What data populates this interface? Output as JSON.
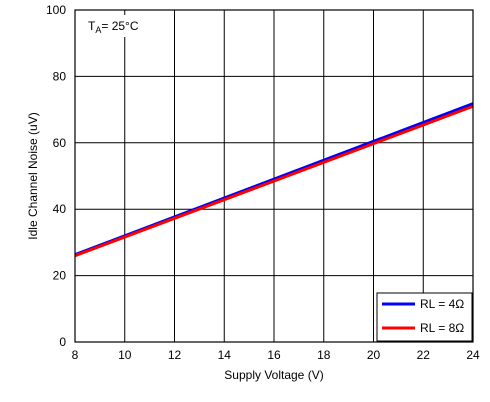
{
  "chart_data": {
    "type": "line",
    "title": "",
    "xlabel": "Supply Voltage (V)",
    "ylabel": "Idle Channel Noise (uV)",
    "xlim": [
      8,
      24
    ],
    "ylim": [
      0,
      100
    ],
    "x_ticks": [
      "8",
      "10",
      "12",
      "14",
      "16",
      "18",
      "20",
      "22",
      "24"
    ],
    "y_ticks": [
      "0",
      "20",
      "40",
      "60",
      "80",
      "100"
    ],
    "grid": true,
    "legend_position": "bottom-right",
    "annotation": {
      "main": "T",
      "subscript": "A",
      "rest": "= 25°C"
    },
    "series": [
      {
        "name": "RL = 4Ω",
        "color": "#0000ff",
        "x": [
          8,
          24
        ],
        "y": [
          26.3,
          71.8
        ]
      },
      {
        "name": "RL = 8Ω",
        "color": "#ff0000",
        "x": [
          8,
          24
        ],
        "y": [
          26.0,
          71.0
        ]
      }
    ]
  }
}
